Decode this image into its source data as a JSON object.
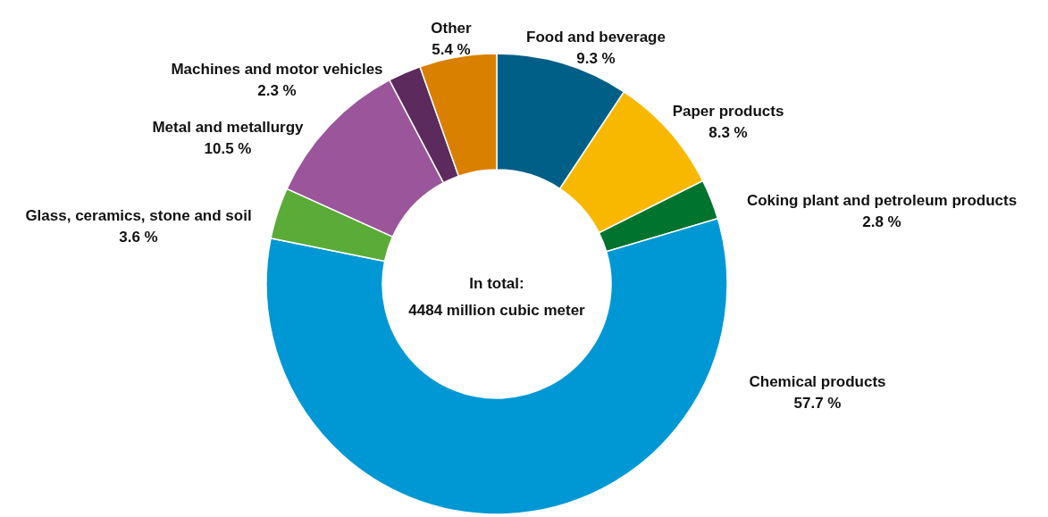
{
  "chart_data": {
    "type": "donut",
    "categories": [
      "Food and beverage",
      "Paper products",
      "Coking plant and petroleum products",
      "Chemical products",
      "Glass, ceramics, stone and soil",
      "Metal and metallurgy",
      "Machines and motor vehicles",
      "Other"
    ],
    "values": [
      9.3,
      8.3,
      2.8,
      57.7,
      3.6,
      10.5,
      2.3,
      5.4
    ],
    "value_labels": [
      "9.3 %",
      "8.3 %",
      "2.8 %",
      "57.7 %",
      "3.6 %",
      "10.5 %",
      "2.3 %",
      "5.4 %"
    ],
    "colors": [
      "#005f87",
      "#f8b800",
      "#00732f",
      "#0098d4",
      "#5aab38",
      "#9b559b",
      "#5c2a5c",
      "#d98000"
    ],
    "annotations": [
      "In total:",
      "4484 million cubic meter"
    ]
  }
}
